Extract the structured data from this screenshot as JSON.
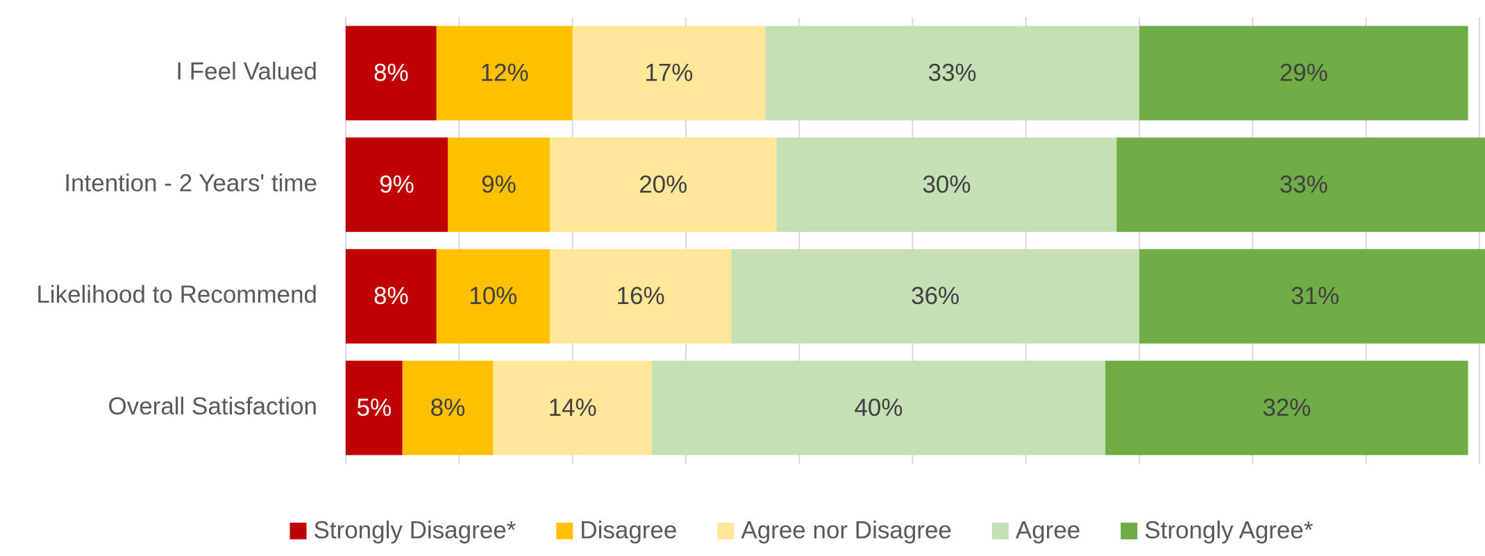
{
  "chart_data": {
    "type": "stacked_bar_horizontal",
    "categories": [
      "I Feel Valued",
      "Intention - 2 Years' time",
      "Likelihood to Recommend",
      "Overall Satisfaction"
    ],
    "series": [
      {
        "name": "Strongly Disagree*",
        "color": "#c00000",
        "values": [
          8,
          9,
          8,
          5
        ],
        "value_labels": [
          "8%",
          "9%",
          "8%",
          "5%"
        ]
      },
      {
        "name": "Disagree",
        "color": "#ffc000",
        "values": [
          12,
          9,
          10,
          8
        ],
        "value_labels": [
          "12%",
          "9%",
          "10%",
          "8%"
        ]
      },
      {
        "name": "Agree nor Disagree",
        "color": "#ffe699",
        "values": [
          17,
          20,
          16,
          14
        ],
        "value_labels": [
          "17%",
          "20%",
          "16%",
          "14%"
        ]
      },
      {
        "name": "Agree",
        "color": "#c5e0b4",
        "values": [
          33,
          30,
          36,
          40
        ],
        "value_labels": [
          "33%",
          "30%",
          "36%",
          "40%"
        ]
      },
      {
        "name": "Strongly Agree*",
        "color": "#70ad47",
        "values": [
          29,
          33,
          31,
          32
        ],
        "value_labels": [
          "29%",
          "33%",
          "31%",
          "32%"
        ]
      }
    ],
    "xlim": [
      0,
      100
    ],
    "xticks": [
      0,
      10,
      20,
      30,
      40,
      50,
      60,
      70,
      80,
      90,
      100
    ],
    "grid": true,
    "legend": "bottom"
  }
}
